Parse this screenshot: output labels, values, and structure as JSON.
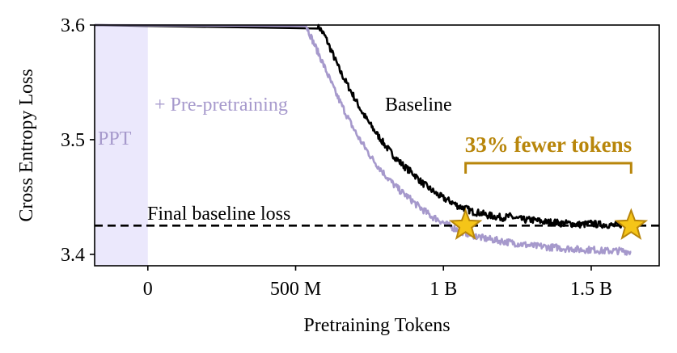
{
  "chart_data": {
    "type": "line",
    "xlabel": "Pretraining Tokens",
    "ylabel": "Cross Entropy Loss",
    "xlim": [
      -180,
      1730
    ],
    "ylim": [
      3.39,
      3.6
    ],
    "x_unit": "M tokens",
    "xticks": [
      {
        "value": 0,
        "label": "0"
      },
      {
        "value": 500,
        "label": "500 M"
      },
      {
        "value": 1000,
        "label": "1 B"
      },
      {
        "value": 1500,
        "label": "1.5 B"
      }
    ],
    "yticks": [
      {
        "value": 3.4,
        "label": "3.4"
      },
      {
        "value": 3.5,
        "label": "3.5"
      },
      {
        "value": 3.6,
        "label": "3.6"
      }
    ],
    "grid": false,
    "ppt_region": {
      "x_range": [
        -180,
        0
      ],
      "label": "PPT",
      "color": "#ebe8fc"
    },
    "series": [
      {
        "name": "Baseline",
        "color": "#000000",
        "x": [
          -180,
          575,
          600,
          625,
          650,
          675,
          700,
          725,
          750,
          775,
          800,
          825,
          850,
          875,
          900,
          925,
          950,
          975,
          1000,
          1025,
          1050,
          1075,
          1100,
          1125,
          1150,
          1175,
          1200,
          1225,
          1250,
          1275,
          1300,
          1325,
          1350,
          1375,
          1400,
          1425,
          1450,
          1475,
          1500,
          1525,
          1550,
          1575,
          1600,
          1625
        ],
        "y": [
          3.6,
          3.6,
          3.59,
          3.575,
          3.56,
          3.548,
          3.536,
          3.524,
          3.514,
          3.505,
          3.496,
          3.488,
          3.481,
          3.475,
          3.47,
          3.463,
          3.458,
          3.453,
          3.449,
          3.446,
          3.442,
          3.44,
          3.437,
          3.436,
          3.434,
          3.433,
          3.432,
          3.433,
          3.431,
          3.43,
          3.43,
          3.429,
          3.428,
          3.428,
          3.427,
          3.427,
          3.426,
          3.426,
          3.427,
          3.426,
          3.426,
          3.425,
          3.426,
          3.425
        ]
      },
      {
        "name": "+ Pre-pretraining",
        "color": "#a699cc",
        "x": [
          -180,
          535,
          560,
          585,
          610,
          635,
          660,
          685,
          710,
          735,
          760,
          785,
          810,
          835,
          860,
          885,
          910,
          935,
          960,
          985,
          1010,
          1035,
          1060,
          1085,
          1110,
          1135,
          1160,
          1185,
          1210,
          1235,
          1260,
          1285,
          1310,
          1335,
          1360,
          1385,
          1410,
          1435,
          1460,
          1485,
          1510,
          1535,
          1560,
          1585,
          1610,
          1635
        ],
        "y": [
          3.6,
          3.6,
          3.585,
          3.571,
          3.556,
          3.541,
          3.528,
          3.515,
          3.503,
          3.493,
          3.483,
          3.475,
          3.467,
          3.46,
          3.454,
          3.449,
          3.443,
          3.438,
          3.433,
          3.43,
          3.426,
          3.423,
          3.42,
          3.418,
          3.416,
          3.414,
          3.413,
          3.412,
          3.411,
          3.41,
          3.409,
          3.408,
          3.407,
          3.407,
          3.406,
          3.406,
          3.405,
          3.405,
          3.404,
          3.404,
          3.404,
          3.403,
          3.403,
          3.403,
          3.403,
          3.402
        ]
      }
    ],
    "hline": {
      "y": 3.425,
      "style": "dashed",
      "label": "Final baseline loss"
    },
    "stars": [
      {
        "x": 1075,
        "y": 3.425
      },
      {
        "x": 1635,
        "y": 3.425
      }
    ],
    "bracket": {
      "x_range": [
        1075,
        1635
      ],
      "label": "33% fewer tokens",
      "color": "#b8860b"
    },
    "annotations": [
      {
        "text": "+ Pre-pretraining",
        "color": "#a699cc"
      },
      {
        "text": "Baseline",
        "color": "#000000"
      },
      {
        "text": "PPT",
        "color": "#a699cc"
      }
    ]
  }
}
